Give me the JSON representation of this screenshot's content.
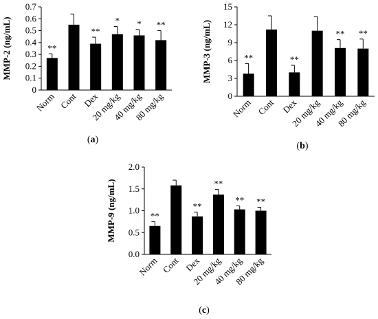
{
  "chart_data": [
    {
      "type": "bar",
      "caption": "(a)",
      "caption_letter": "a",
      "ylabel": "MMP-2 (ng/mL)",
      "ylim": [
        0,
        0.7
      ],
      "yticks": [
        "0",
        "0.1",
        "0.2",
        "0.3",
        "0.4",
        "0.5",
        "0.6",
        "0.7"
      ],
      "categories": [
        "Norm",
        "Cont",
        "Dex",
        "20 mg/kg",
        "40 mg/kg",
        "80 mg/kg"
      ],
      "values": [
        0.27,
        0.55,
        0.39,
        0.47,
        0.46,
        0.42
      ],
      "errors": [
        0.035,
        0.09,
        0.055,
        0.065,
        0.05,
        0.08
      ],
      "significance": [
        "**",
        "",
        "**",
        "*",
        "*",
        "**"
      ]
    },
    {
      "type": "bar",
      "caption": "(b)",
      "caption_letter": "b",
      "ylabel": "MMP-3 (ng/mL)",
      "ylim": [
        0,
        15
      ],
      "yticks": [
        "0",
        "3",
        "6",
        "9",
        "12",
        "15"
      ],
      "categories": [
        "Norm",
        "Cont",
        "Dex",
        "20 mg/kg",
        "40 mg/kg",
        "80 mg/kg"
      ],
      "values": [
        3.8,
        11.2,
        4.0,
        11.0,
        8.1,
        8.0
      ],
      "errors": [
        1.7,
        2.3,
        1.2,
        2.4,
        1.4,
        1.6
      ],
      "significance": [
        "**",
        "",
        "**",
        "",
        "**",
        "**"
      ]
    },
    {
      "type": "bar",
      "caption": "(c)",
      "caption_letter": "c",
      "ylabel": "MMP-9 (ng/mL)",
      "ylim": [
        0,
        2.0
      ],
      "yticks": [
        "0.0",
        "0.5",
        "1.0",
        "1.5",
        "2.0"
      ],
      "categories": [
        "Norm",
        "Cont",
        "Dex",
        "20 mg/kg",
        "40 mg/kg",
        "80 mg/kg"
      ],
      "values": [
        0.65,
        1.58,
        0.87,
        1.37,
        1.03,
        1.0
      ],
      "errors": [
        0.1,
        0.12,
        0.1,
        0.12,
        0.08,
        0.08
      ],
      "significance": [
        "**",
        "",
        "**",
        "**",
        "**",
        "**"
      ]
    }
  ],
  "colors": {
    "bar": "#000000",
    "axis": "#000000"
  }
}
